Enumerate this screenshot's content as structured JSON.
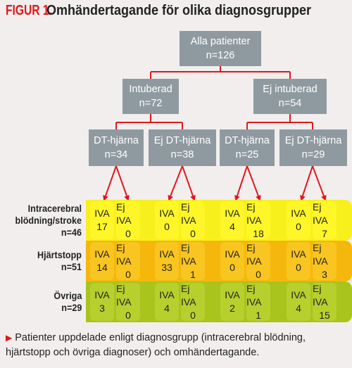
{
  "title": {
    "figure": "FIGUR 1.",
    "text": "Omhändertagande för olika diagnosgrupper"
  },
  "nodes": {
    "root": {
      "label": "Alla patienter",
      "n": "n=126"
    },
    "intub": {
      "label": "Intuberad",
      "n": "n=72"
    },
    "ejintub": {
      "label": "Ej intuberad",
      "n": "n=54"
    },
    "dt1": {
      "label": "DT-hjärna",
      "n": "n=34"
    },
    "ejdt1": {
      "label": "Ej DT-hjärna",
      "n": "n=38"
    },
    "dt2": {
      "label": "DT-hjärna",
      "n": "n=25"
    },
    "ejdt2": {
      "label": "Ej DT-hjärna",
      "n": "n=29"
    }
  },
  "rows": [
    {
      "label": [
        "Intracerebral",
        "blödning/stroke",
        "n=46"
      ],
      "values": [
        "17",
        "0",
        "0",
        "0",
        "4",
        "18",
        "0",
        "7"
      ]
    },
    {
      "label": [
        "Hjärtstopp",
        "n=51"
      ],
      "values": [
        "14",
        "0",
        "33",
        "1",
        "0",
        "0",
        "0",
        "3"
      ]
    },
    {
      "label": [
        "Övriga",
        "n=29"
      ],
      "values": [
        "3",
        "0",
        "4",
        "0",
        "2",
        "1",
        "4",
        "15"
      ]
    }
  ],
  "cell_headers": [
    "IVA",
    "Ej IVA",
    "IVA",
    "Ej IVA",
    "IVA",
    "Ej IVA",
    "IVA",
    "Ej IVA"
  ],
  "caption": {
    "marker": "▶",
    "text": "Patienter uppdelade enligt diagnosgrupp (intracerebral blödning, hjärtstopp och övriga diagnoser) och omhändertagande."
  },
  "colors": {
    "node": "#8f9aa0",
    "arrow": "#e0181b",
    "row_band": [
      "#f7f01c",
      "#f6b70c",
      "#a9c41c"
    ],
    "row_cell": [
      "#fff62a",
      "#f9c520",
      "#b7d02e"
    ]
  }
}
